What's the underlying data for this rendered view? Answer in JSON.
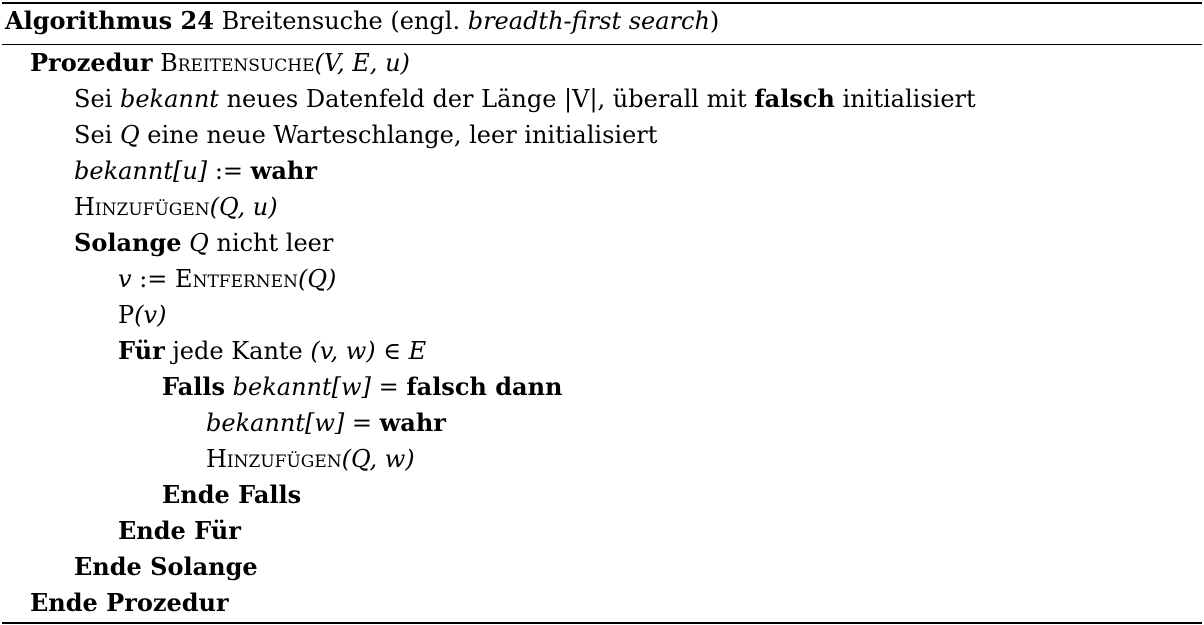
{
  "caption": {
    "label": "Algorithmus 24",
    "title": "Breitensuche (engl.",
    "title_en": "breadth-first search",
    "title_close": ")"
  },
  "lines": [
    {
      "kw": "Prozedur",
      "name": "Breitensuche",
      "args": "(V, E, u)"
    },
    {
      "t1": "Sei",
      "it1": "bekannt",
      "t2": "neues Datenfeld der Länge |V|, überall mit",
      "b1": "falsch",
      "t3": "initialisiert"
    },
    {
      "t1": "Sei",
      "m1": "Q",
      "t2": "eine neue Warteschlange, leer initialisiert"
    },
    {
      "it1": "bekannt[u]",
      "t1": ":=",
      "b1": "wahr"
    },
    {
      "name": "Hinzufügen",
      "args": "(Q, u)"
    },
    {
      "kw": "Solange",
      "m1": "Q",
      "t1": "nicht leer"
    },
    {
      "m1": "v",
      "t1": ":=",
      "name": "Entfernen",
      "args": "(Q)"
    },
    {
      "t1": "P",
      "args": "(v)"
    },
    {
      "kw": "Für",
      "t1": "jede Kante",
      "args": "(v, w) ∈ E"
    },
    {
      "kw": "Falls",
      "it1": "bekannt[w]",
      "t1": "=",
      "b1": "falsch dann"
    },
    {
      "it1": "bekannt[w]",
      "t1": "=",
      "b1": "wahr"
    },
    {
      "name": "Hinzufügen",
      "args": "(Q, w)"
    },
    {
      "kw": "Ende Falls"
    },
    {
      "kw": "Ende Für"
    },
    {
      "kw": "Ende Solange"
    },
    {
      "kw": "Ende Prozedur"
    }
  ]
}
